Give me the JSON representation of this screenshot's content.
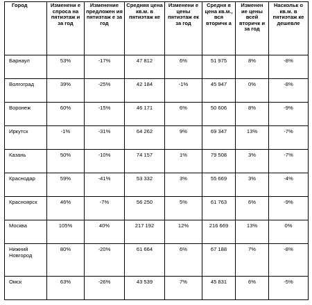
{
  "table": {
    "headers": [
      "Город",
      "Изменени е спроса на пятиэтаж и за год",
      "Изменение предложен ия пятиэтаж е за год",
      "Средняя цена кв.м. в пятиэтаж ке",
      "Изменени е цены пятиэтаж ек за год",
      "Средня я цена кв.м., вся вторичк а",
      "Изменен ие цены всей вторичк и за год",
      "Наскольк о кв.м. в пятиэтаж ке дешевле"
    ],
    "rows": [
      [
        "Барнаул",
        "53%",
        "-17%",
        "47 812",
        "6%",
        "51 975",
        "8%",
        "-8%"
      ],
      [
        "Волгоград",
        "39%",
        "-25%",
        "42 184",
        "-1%",
        "45 947",
        "0%",
        "-8%"
      ],
      [
        "Воронеж",
        "60%",
        "-15%",
        "46 171",
        "6%",
        "50 606",
        "8%",
        "-9%"
      ],
      [
        "Иркутск",
        "-1%",
        "-31%",
        "64 262",
        "9%",
        "69 347",
        "13%",
        "-7%"
      ],
      [
        "Казань",
        "50%",
        "-10%",
        "74 157",
        "1%",
        "79 508",
        "3%",
        "-7%"
      ],
      [
        "Краснодар",
        "59%",
        "-41%",
        "53 332",
        "3%",
        "55 669",
        "3%",
        "-4%"
      ],
      [
        "Красноярск",
        "46%",
        "-7%",
        "56 250",
        "5%",
        "61 763",
        "6%",
        "-9%"
      ],
      [
        "Москва",
        "105%",
        "40%",
        "217 192",
        "12%",
        "216 669",
        "13%",
        "0%"
      ],
      [
        "Нижний Новгород",
        "80%",
        "-20%",
        "61 664",
        "6%",
        "67 188",
        "7%",
        "-8%"
      ],
      [
        "Омск",
        "63%",
        "-26%",
        "43 539",
        "7%",
        "45 831",
        "6%",
        "-5%"
      ]
    ]
  }
}
